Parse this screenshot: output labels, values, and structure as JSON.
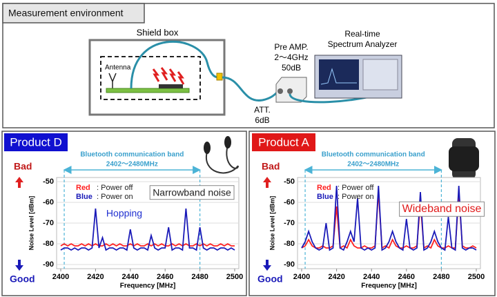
{
  "diagram": {
    "header": "Measurement environment",
    "shield_box": "Shield box",
    "antenna": "Antenna",
    "amp": [
      "Pre AMP.",
      "2～4GHz",
      "50dB"
    ],
    "analyzer": [
      "Real-time",
      "Spectrum Analyzer"
    ],
    "att": [
      "ATT.",
      "6dB"
    ]
  },
  "chart_data": [
    {
      "type": "line",
      "title": "Product D",
      "title_color": "#1010d0",
      "band_label": "Bluetooth communication band",
      "band_range_label": "2402～2480MHz",
      "band": [
        2402,
        2480
      ],
      "annotations": [
        "Narrowband noise",
        "Hopping"
      ],
      "quality_top": "Bad",
      "quality_bottom": "Good",
      "xlabel": "Frequency [MHz]",
      "ylabel": "Noise Level [dBm]",
      "xlim": [
        2400,
        2500
      ],
      "ylim": [
        -92,
        -48
      ],
      "xticks": [
        2400,
        2420,
        2440,
        2460,
        2480,
        2500
      ],
      "yticks": [
        -50,
        -60,
        -70,
        -80,
        -90
      ],
      "grid": true,
      "x": [
        2400,
        2402,
        2404,
        2406,
        2408,
        2410,
        2412,
        2414,
        2416,
        2418,
        2420,
        2422,
        2424,
        2426,
        2428,
        2430,
        2432,
        2434,
        2436,
        2438,
        2440,
        2442,
        2444,
        2446,
        2448,
        2450,
        2452,
        2454,
        2456,
        2458,
        2460,
        2462,
        2464,
        2466,
        2468,
        2470,
        2472,
        2474,
        2476,
        2478,
        2480,
        2482,
        2484,
        2486,
        2488,
        2490,
        2492,
        2494,
        2496,
        2498,
        2500
      ],
      "series": [
        {
          "key": "Red",
          "name": ": Power off",
          "color": "#ff2020",
          "values": [
            -81,
            -80,
            -81,
            -80,
            -81,
            -81,
            -80,
            -81,
            -80,
            -81,
            -80,
            -81,
            -81,
            -80,
            -81,
            -80,
            -81,
            -80,
            -81,
            -81,
            -80,
            -81,
            -80,
            -81,
            -81,
            -80,
            -81,
            -80,
            -81,
            -80,
            -81,
            -81,
            -80,
            -81,
            -80,
            -81,
            -80,
            -81,
            -81,
            -80,
            -81,
            -80,
            -81,
            -80,
            -81,
            -81,
            -80,
            -81,
            -80,
            -81,
            -81
          ]
        },
        {
          "key": "Blue",
          "name": ": Power on",
          "color": "#1a1ab8",
          "values": [
            -83,
            -82,
            -82,
            -83,
            -82,
            -83,
            -82,
            -82,
            -83,
            -82,
            -63,
            -82,
            -77,
            -83,
            -82,
            -82,
            -83,
            -82,
            -82,
            -83,
            -73,
            -82,
            -83,
            -82,
            -82,
            -83,
            -76,
            -82,
            -83,
            -82,
            -82,
            -72,
            -83,
            -82,
            -82,
            -83,
            -63,
            -82,
            -82,
            -83,
            -72,
            -82,
            -83,
            -82,
            -82,
            -83,
            -82,
            -82,
            -83,
            -82,
            -83
          ]
        }
      ]
    },
    {
      "type": "line",
      "title": "Product A",
      "title_color": "#e01818",
      "band_label": "Bluetooth communication band",
      "band_range_label": "2402～2480MHz",
      "band": [
        2402,
        2480
      ],
      "annotations": [
        "Wideband noise"
      ],
      "quality_top": "Bad",
      "quality_bottom": "Good",
      "xlabel": "Frequency [MHz]",
      "ylabel": "Noise Level [dBm]",
      "xlim": [
        2400,
        2500
      ],
      "ylim": [
        -92,
        -48
      ],
      "xticks": [
        2400,
        2420,
        2440,
        2460,
        2480,
        2500
      ],
      "yticks": [
        -50,
        -60,
        -70,
        -80,
        -90
      ],
      "grid": true,
      "x": [
        2400,
        2402,
        2404,
        2406,
        2408,
        2410,
        2412,
        2414,
        2416,
        2418,
        2420,
        2422,
        2424,
        2426,
        2428,
        2430,
        2432,
        2434,
        2436,
        2438,
        2440,
        2442,
        2444,
        2446,
        2448,
        2450,
        2452,
        2454,
        2456,
        2458,
        2460,
        2462,
        2464,
        2466,
        2468,
        2470,
        2472,
        2474,
        2476,
        2478,
        2480,
        2482,
        2484,
        2486,
        2488,
        2490,
        2492,
        2494,
        2496,
        2498,
        2500
      ],
      "series": [
        {
          "key": "Red",
          "name": ": Power off",
          "color": "#ff2020",
          "values": [
            -82,
            -81,
            -78,
            -81,
            -82,
            -82,
            -81,
            -82,
            -82,
            -81,
            -62,
            -82,
            -81,
            -82,
            -78,
            -81,
            -82,
            -82,
            -81,
            -82,
            -82,
            -81,
            -55,
            -82,
            -81,
            -82,
            -78,
            -81,
            -82,
            -82,
            -81,
            -82,
            -82,
            -81,
            -60,
            -82,
            -81,
            -82,
            -78,
            -81,
            -82,
            -82,
            -81,
            -82,
            -82,
            -56,
            -81,
            -82,
            -82,
            -81,
            -82
          ]
        },
        {
          "key": "Blue",
          "name": ": Power on",
          "color": "#1a1ab8",
          "values": [
            -82,
            -79,
            -74,
            -79,
            -82,
            -83,
            -82,
            -70,
            -83,
            -82,
            -52,
            -82,
            -83,
            -79,
            -74,
            -79,
            -58,
            -82,
            -83,
            -82,
            -83,
            -82,
            -52,
            -83,
            -82,
            -79,
            -74,
            -79,
            -82,
            -83,
            -68,
            -82,
            -83,
            -82,
            -55,
            -83,
            -82,
            -79,
            -74,
            -79,
            -82,
            -83,
            -67,
            -82,
            -83,
            -52,
            -82,
            -83,
            -82,
            -82,
            -83
          ]
        }
      ]
    }
  ]
}
